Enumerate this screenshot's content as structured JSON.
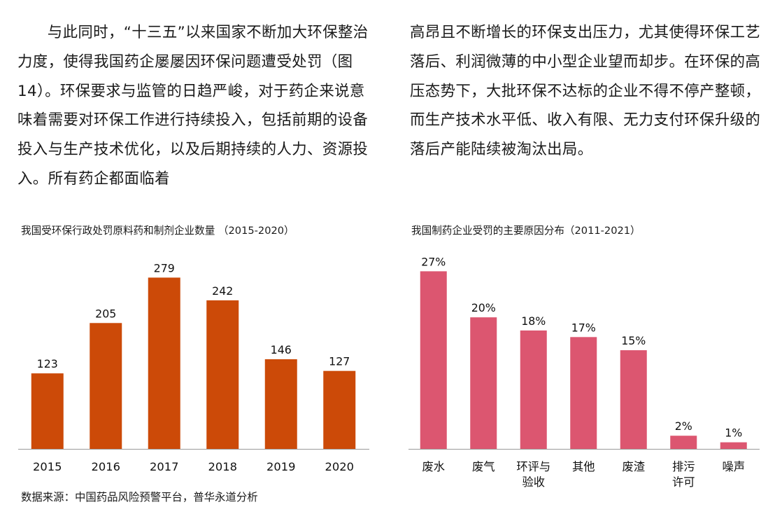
{
  "text": {
    "left_paragraph": "与此同时，“十三五”以来国家不断加大环保整治力度，使得我国药企屡屡因环保问题遭受处罚（图14）。环保要求与监管的日趋严峻，对于药企来说意味着需要对环保工作进行持续投入，包括前期的设备投入与生产技术优化，以及后期持续的人力、资源投入。所有药企都面临着",
    "right_paragraph": "高昂且不断增长的环保支出压力，尤其使得环保工艺落后、利润微薄的中小型企业望而却步。在环保的高压态势下，大批环保不达标的企业不得不停产整顿，而生产技术水平低、收入有限、无力支付环保升级的落后产能陆续被淘汰出局。"
  },
  "source_note": "数据来源：中国药品风险预警平台，普华永道分析",
  "chart_data": [
    {
      "type": "bar",
      "title": "我国受环保行政处罚原料药和制剂企业数量 （2015-2020）",
      "categories": [
        "2015",
        "2016",
        "2017",
        "2018",
        "2019",
        "2020"
      ],
      "values": [
        123,
        205,
        279,
        242,
        146,
        127
      ],
      "data_labels": [
        "123",
        "205",
        "279",
        "242",
        "146",
        "127"
      ],
      "ylim": [
        0,
        300
      ],
      "color": "#cc4a08",
      "grid": false,
      "legend": "none"
    },
    {
      "type": "bar",
      "title": "我国制药企业受罚的主要原因分布（2011-2021）",
      "categories": [
        "废水",
        "废气",
        "环评与验收",
        "其他",
        "废渣",
        "排污许可",
        "噪声"
      ],
      "category_lines": [
        [
          "废水"
        ],
        [
          "废气"
        ],
        [
          "环评与",
          "验收"
        ],
        [
          "其他"
        ],
        [
          "废渣"
        ],
        [
          "排污",
          "许可"
        ],
        [
          "噪声"
        ]
      ],
      "values": [
        27,
        20,
        18,
        17,
        15,
        2,
        1
      ],
      "data_labels": [
        "27%",
        "20%",
        "18%",
        "17%",
        "15%",
        "2%",
        "1%"
      ],
      "ylim": [
        0,
        28
      ],
      "color": "#dc5670",
      "grid": false,
      "legend": "none"
    }
  ]
}
